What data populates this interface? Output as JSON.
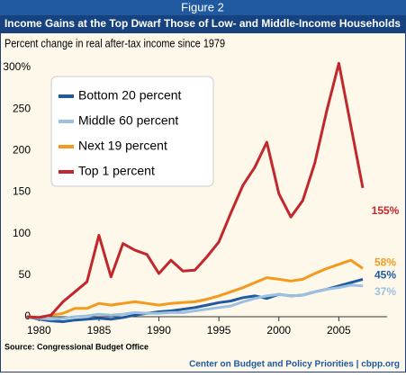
{
  "chart_data": {
    "type": "line",
    "figure_label": "Figure 2",
    "title": "Income Gains at the Top Dwarf Those of Low- and Middle-Income Households",
    "subtitle": "Percent change in real after-tax income since 1979",
    "source": "Source: Congressional Budget Office",
    "credit": "Center on Budget and Policy Priorities | cbpp.org",
    "x": [
      1979,
      1980,
      1981,
      1982,
      1983,
      1984,
      1985,
      1986,
      1987,
      1988,
      1989,
      1990,
      1991,
      1992,
      1993,
      1994,
      1995,
      1996,
      1997,
      1998,
      1999,
      2000,
      2001,
      2002,
      2003,
      2004,
      2005,
      2006,
      2007
    ],
    "xlim": [
      1979,
      2007
    ],
    "xticks": [
      1980,
      1985,
      1990,
      1995,
      2000,
      2005
    ],
    "ylim": [
      0,
      300
    ],
    "yticks": [
      0,
      50,
      100,
      150,
      200,
      250,
      {
        "value": 300,
        "label": "300%"
      }
    ],
    "legend": "top-left",
    "series": [
      {
        "name": "Bottom 20 percent",
        "color": "#1f5aa0",
        "values": [
          0,
          -3,
          -5,
          -6,
          -4,
          -3,
          -2,
          -3,
          -1,
          2,
          4,
          6,
          7,
          9,
          11,
          14,
          17,
          19,
          23,
          25,
          22,
          27,
          25,
          26,
          30,
          33,
          37,
          41,
          45
        ],
        "value_labels": [
          null,
          null,
          null,
          null,
          null,
          null,
          null,
          null,
          null,
          null,
          null,
          null,
          null,
          null,
          null,
          null,
          null,
          null,
          null,
          null,
          null,
          null,
          null,
          null,
          null,
          null,
          null,
          null,
          "45%"
        ]
      },
      {
        "name": "Middle 60 percent",
        "color": "#9cc0e2",
        "values": [
          0,
          -2,
          -3,
          -2,
          0,
          1,
          3,
          2,
          3,
          5,
          4,
          4,
          5,
          5,
          7,
          9,
          11,
          13,
          18,
          22,
          25,
          27,
          25,
          26,
          30,
          33,
          35,
          38,
          37
        ],
        "value_labels": [
          null,
          null,
          null,
          null,
          null,
          null,
          null,
          null,
          null,
          null,
          null,
          null,
          null,
          null,
          null,
          null,
          null,
          null,
          null,
          null,
          null,
          null,
          null,
          null,
          null,
          null,
          null,
          null,
          "37%"
        ]
      },
      {
        "name": "Next 19 percent",
        "color": "#f39a1e",
        "values": [
          0,
          -1,
          2,
          4,
          10,
          10,
          16,
          14,
          16,
          18,
          16,
          14,
          16,
          17,
          18,
          21,
          25,
          30,
          35,
          41,
          47,
          45,
          43,
          45,
          52,
          58,
          63,
          68,
          58
        ],
        "value_labels": [
          null,
          null,
          null,
          null,
          null,
          null,
          null,
          null,
          null,
          null,
          null,
          null,
          null,
          null,
          null,
          null,
          null,
          null,
          null,
          null,
          null,
          null,
          null,
          null,
          null,
          null,
          null,
          null,
          "58%"
        ]
      },
      {
        "name": "Top 1 percent",
        "color": "#c1272d",
        "values": [
          0,
          -1,
          2,
          18,
          30,
          42,
          98,
          48,
          88,
          80,
          75,
          52,
          68,
          55,
          56,
          72,
          90,
          125,
          158,
          180,
          210,
          148,
          120,
          140,
          185,
          248,
          305,
          230,
          155
        ],
        "value_labels": [
          null,
          null,
          null,
          null,
          null,
          null,
          null,
          null,
          null,
          null,
          null,
          null,
          null,
          null,
          null,
          null,
          null,
          null,
          null,
          null,
          null,
          null,
          null,
          null,
          null,
          null,
          null,
          null,
          "155%"
        ]
      }
    ]
  }
}
